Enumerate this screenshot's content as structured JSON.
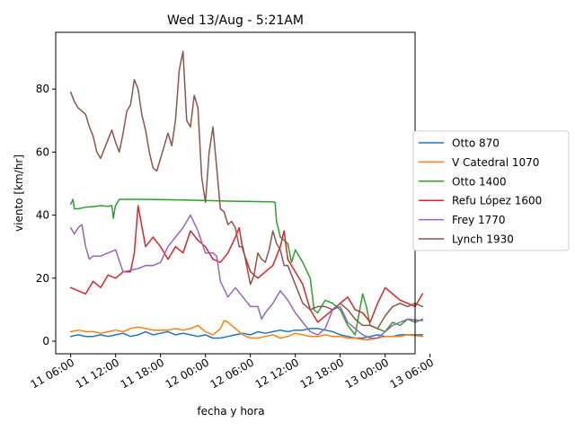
{
  "chart_data": {
    "type": "line",
    "title": "Wed 13/Aug - 5:21AM",
    "xlabel": "fecha y hora",
    "ylabel": "viento [km/hr]",
    "xlim": [
      -2,
      46
    ],
    "ylim": [
      -4,
      98
    ],
    "x_unit": "hours since 11 06:00",
    "xticks": [
      {
        "x": 0,
        "label": "11 06:00"
      },
      {
        "x": 6,
        "label": "11 12:00"
      },
      {
        "x": 12,
        "label": "11 18:00"
      },
      {
        "x": 18,
        "label": "12 00:00"
      },
      {
        "x": 24,
        "label": "12 06:00"
      },
      {
        "x": 30,
        "label": "12 12:00"
      },
      {
        "x": 36,
        "label": "12 18:00"
      },
      {
        "x": 42,
        "label": "13 00:00"
      },
      {
        "x": 48,
        "label": "13 06:00"
      }
    ],
    "yticks": [
      0,
      20,
      40,
      60,
      80
    ],
    "legend_position": "center-right outside",
    "series": [
      {
        "name": "Otto 870",
        "color": "#1f77b4",
        "x": [
          0,
          1,
          2,
          3,
          4,
          5,
          6,
          7,
          8,
          9,
          10,
          11,
          12,
          13,
          14,
          15,
          16,
          17,
          18,
          19,
          20,
          21,
          22,
          23,
          24,
          25,
          26,
          27,
          28,
          29,
          30,
          31,
          32,
          33,
          34,
          35,
          36,
          37,
          38,
          39,
          40,
          41,
          42,
          43,
          44,
          45,
          47
        ],
        "y": [
          1.5,
          2,
          1.5,
          1.5,
          2,
          1.5,
          2,
          2.5,
          1.5,
          2,
          3,
          2,
          2.5,
          3,
          2,
          2.5,
          2,
          1.5,
          2,
          1,
          1,
          1.5,
          2,
          2.5,
          2,
          3,
          2.5,
          3,
          3.5,
          3,
          3.5,
          3.5,
          4,
          4,
          3.5,
          3,
          2,
          1.5,
          1,
          1,
          1.5,
          2,
          1.5,
          1.5,
          2,
          2,
          2
        ]
      },
      {
        "name": "V Catedral 1070",
        "color": "#ff7f0e",
        "x": [
          0,
          1,
          2,
          3,
          4,
          5,
          6,
          7,
          8,
          9,
          10,
          11,
          12,
          13,
          14,
          15,
          16,
          17,
          18,
          19,
          20,
          20.5,
          21,
          22,
          23,
          24,
          25,
          26,
          27,
          28,
          29,
          30,
          31,
          32,
          33,
          34,
          35,
          36,
          37,
          38,
          39,
          40,
          41,
          42,
          43,
          44,
          45,
          47
        ],
        "y": [
          3,
          3.5,
          3,
          3,
          2.5,
          3,
          3.5,
          3,
          4,
          4.5,
          4,
          3.5,
          3.5,
          3.5,
          4,
          3.5,
          4,
          5,
          3,
          2,
          4,
          6.5,
          6,
          4,
          2,
          1,
          1,
          1.5,
          2,
          1,
          1.5,
          2.5,
          2,
          1.5,
          1.5,
          2,
          1.5,
          1.5,
          1,
          1,
          0.5,
          0.5,
          1,
          1.5,
          1.5,
          1.5,
          2,
          1.5
        ]
      },
      {
        "name": "Otto 1400",
        "color": "#2ca02c",
        "x": [
          0,
          0.3,
          0.5,
          1,
          2,
          3,
          4,
          5,
          5.5,
          5.7,
          5.9,
          6,
          6.5,
          7,
          10,
          15,
          20,
          27,
          27.3,
          27.5,
          28,
          29,
          29.5,
          30,
          31,
          32,
          32.5,
          33,
          34,
          35,
          36,
          37,
          38,
          39,
          39.5,
          40,
          41,
          42,
          43,
          44,
          45,
          46,
          47
        ],
        "y": [
          43.5,
          45,
          42,
          42,
          42.5,
          42.7,
          43,
          42.8,
          43,
          39,
          42,
          43,
          45,
          45,
          45,
          44.8,
          44.5,
          44.2,
          44,
          38,
          33,
          31,
          25,
          29,
          25,
          20,
          10,
          9,
          13,
          12,
          10,
          5,
          2,
          15,
          11,
          5,
          4,
          3,
          6,
          5,
          7,
          6,
          7
        ]
      },
      {
        "name": "Refu López 1600",
        "color": "#d62728",
        "x": [
          0,
          1,
          2,
          3,
          4,
          5,
          6,
          7,
          8,
          8.5,
          9,
          10,
          11,
          12,
          13,
          14,
          15,
          16,
          17,
          18,
          19,
          20,
          21,
          22,
          22.5,
          23,
          24,
          25,
          26,
          27,
          28,
          28.5,
          29,
          30,
          31,
          32,
          33,
          34,
          35,
          36,
          37,
          38,
          39,
          40,
          41,
          42,
          43,
          44,
          45,
          46,
          47
        ],
        "y": [
          17,
          16,
          15,
          19,
          17,
          21,
          20,
          22,
          22,
          28,
          43,
          30,
          33,
          30,
          26,
          30,
          28,
          35,
          32,
          30,
          26,
          25,
          28,
          33,
          36,
          29,
          22,
          20,
          22,
          24,
          30,
          35,
          26,
          22,
          18,
          10,
          6,
          8,
          10,
          12,
          14,
          10,
          9,
          6,
          12,
          17,
          15,
          13,
          12,
          11,
          15
        ]
      },
      {
        "name": "Frey 1770",
        "color": "#9467bd",
        "x": [
          0,
          0.5,
          1,
          1.5,
          2,
          2.5,
          3,
          4,
          5,
          6,
          7,
          8,
          9,
          10,
          11,
          12,
          13,
          14,
          15,
          16,
          17,
          18,
          19,
          19.5,
          20,
          21,
          22,
          23,
          24,
          25,
          25.5,
          26,
          27,
          28,
          29,
          30,
          31,
          32,
          33,
          34,
          35,
          36,
          37,
          38,
          39,
          40,
          41,
          42,
          43,
          44,
          45,
          47
        ],
        "y": [
          36,
          34,
          36,
          37,
          30,
          26,
          27,
          27,
          28,
          29,
          22,
          22.5,
          23,
          24,
          24,
          25,
          30,
          33,
          36,
          40,
          35,
          28,
          28,
          27,
          19,
          14,
          17,
          14,
          11,
          11,
          7,
          9,
          12,
          16,
          13,
          9,
          6,
          3,
          2,
          4,
          10,
          11,
          6,
          4,
          2,
          1,
          1,
          3,
          5,
          6,
          7,
          6.5
        ]
      },
      {
        "name": "Lynch 1930",
        "color": "#8c564b",
        "x": [
          0,
          0.5,
          1,
          1.5,
          2,
          2.5,
          3,
          3.5,
          4,
          5,
          5.5,
          6,
          6.5,
          7,
          7.5,
          8,
          8.5,
          9,
          9.5,
          10,
          10.5,
          11,
          11.5,
          12,
          12.5,
          13,
          13.5,
          14,
          14.5,
          15,
          15.5,
          16,
          16.5,
          17,
          17.5,
          18,
          18.5,
          19,
          19.5,
          20,
          20.5,
          21,
          21.5,
          22,
          22.5,
          23,
          23.5,
          24,
          24.5,
          25,
          25.5,
          26,
          26.5,
          27,
          27.5,
          28,
          28.5,
          29,
          30,
          31,
          32,
          33,
          34,
          35,
          36,
          37,
          38,
          39,
          40,
          41,
          42,
          43,
          44,
          45,
          46,
          47
        ],
        "y": [
          79,
          76,
          74,
          73,
          72,
          68,
          65,
          60,
          58,
          64,
          67,
          63,
          60,
          66,
          73,
          75,
          83,
          80,
          72,
          67,
          60,
          55,
          54,
          58,
          62,
          66,
          62,
          70,
          86,
          92,
          70,
          68,
          78,
          74,
          52,
          44,
          60,
          68,
          55,
          42,
          41,
          37,
          38,
          36,
          30,
          30,
          24,
          18,
          21,
          28,
          26,
          25,
          29,
          35,
          31,
          29,
          24,
          24,
          18,
          12,
          10,
          11,
          11,
          10,
          12,
          10,
          7,
          5,
          5,
          4,
          8,
          11,
          12,
          11,
          12,
          11
        ]
      }
    ]
  }
}
